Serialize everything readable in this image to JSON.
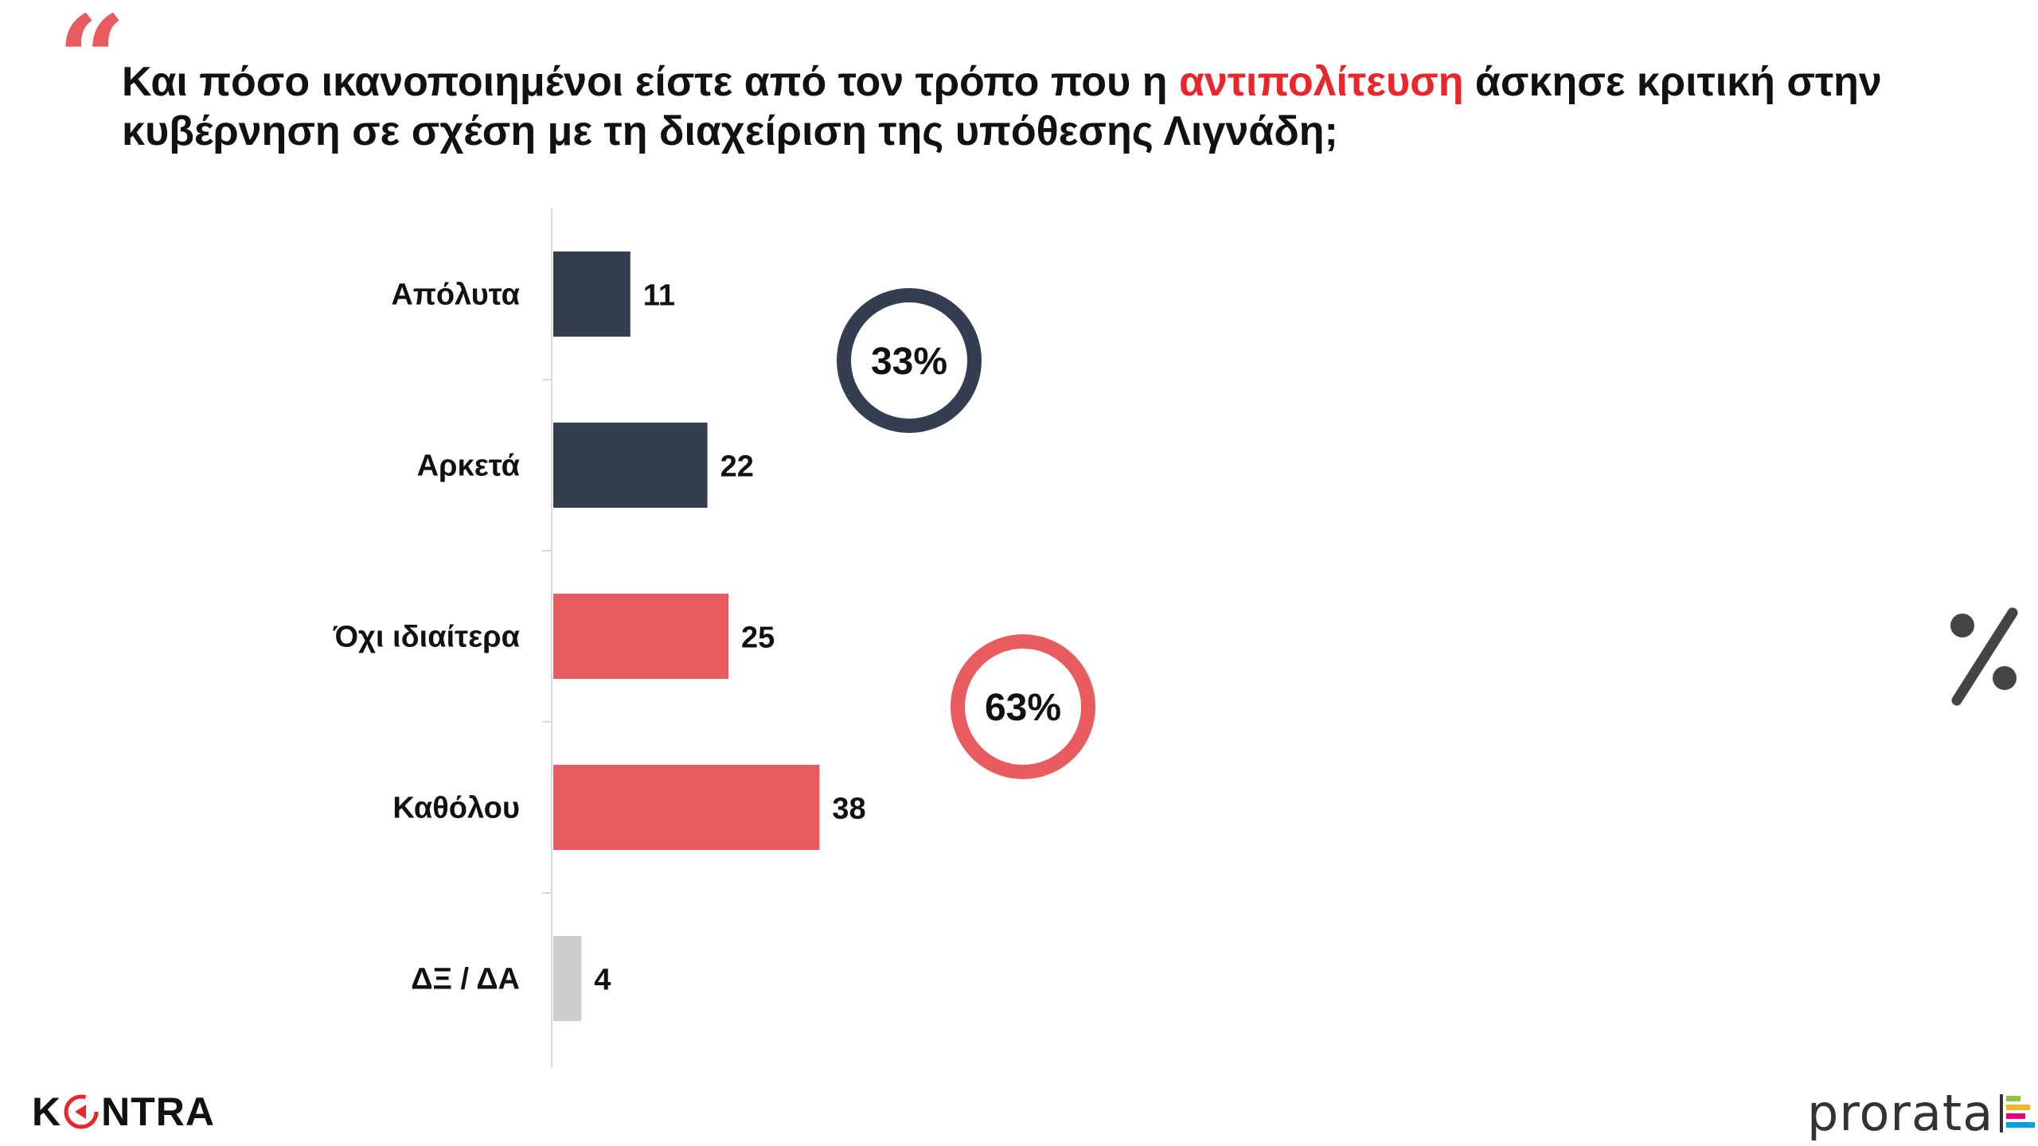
{
  "question": {
    "before": "Και πόσο ικανοποιημένοι είστε από τον τρόπο που η ",
    "highlight": "αντιπολίτευση",
    "after": " άσκησε κριτική στην κυβέρνηση σε σχέση με τη διαχείριση της υπόθεσης Λιγνάδη;"
  },
  "chart_data": {
    "type": "bar",
    "orientation": "horizontal",
    "categories": [
      "Απόλυτα",
      "Αρκετά",
      "Όχι ιδιαίτερα",
      "Καθόλου",
      "ΔΞ / ΔΑ"
    ],
    "values": [
      11,
      22,
      25,
      38,
      4
    ],
    "colors": [
      "#343e50",
      "#343e50",
      "#e85c60",
      "#e85c60",
      "#cccccc"
    ],
    "title": "",
    "xlabel": "",
    "ylabel": "",
    "xlim": [
      0,
      100
    ],
    "grid": false,
    "legend": "none",
    "annotations": [
      {
        "text": "33%",
        "group": [
          "Απόλυτα",
          "Αρκετά"
        ],
        "color": "#343e50"
      },
      {
        "text": "63%",
        "group": [
          "Όχι ιδιαίτερα",
          "Καθόλου"
        ],
        "color": "#e85c60"
      }
    ]
  },
  "branding": {
    "kontra_left": "K",
    "kontra_right": "NTRA",
    "prorata": "prorata",
    "percent_icon": "percent-icon"
  },
  "colors": {
    "accent_red": "#e8262b",
    "navy": "#343e50",
    "coral": "#e85c60",
    "gray": "#cccccc"
  }
}
